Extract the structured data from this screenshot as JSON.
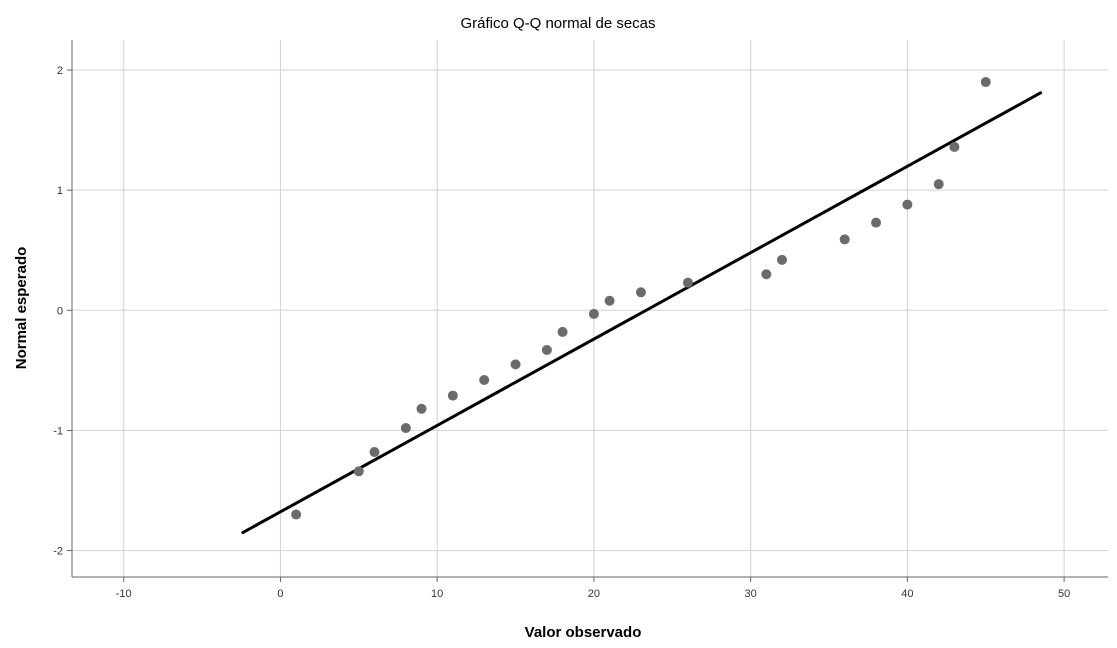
{
  "chart_data": {
    "type": "scatter",
    "title": "Gráfico Q-Q normal de secas",
    "xlabel": "Valor observado",
    "ylabel": "Normal esperado",
    "xlim": [
      -13.3,
      52.8
    ],
    "ylim": [
      -2.22,
      2.25
    ],
    "xticks": [
      -10,
      0,
      10,
      20,
      30,
      40,
      50
    ],
    "yticks": [
      -2,
      -1,
      0,
      1,
      2
    ],
    "x_tick_labels": [
      "-10",
      "0",
      "10",
      "20",
      "30",
      "40",
      "50"
    ],
    "y_tick_labels": [
      "-2",
      "-1",
      "0",
      "1",
      "2"
    ],
    "grid": true,
    "points": [
      {
        "x": 1,
        "y": -1.7
      },
      {
        "x": 5,
        "y": -1.34
      },
      {
        "x": 6,
        "y": -1.18
      },
      {
        "x": 8,
        "y": -0.98
      },
      {
        "x": 9,
        "y": -0.82
      },
      {
        "x": 11,
        "y": -0.71
      },
      {
        "x": 13,
        "y": -0.58
      },
      {
        "x": 15,
        "y": -0.45
      },
      {
        "x": 17,
        "y": -0.33
      },
      {
        "x": 18,
        "y": -0.18
      },
      {
        "x": 20,
        "y": -0.03
      },
      {
        "x": 21,
        "y": 0.08
      },
      {
        "x": 23,
        "y": 0.15
      },
      {
        "x": 26,
        "y": 0.23
      },
      {
        "x": 31,
        "y": 0.3
      },
      {
        "x": 32,
        "y": 0.42
      },
      {
        "x": 36,
        "y": 0.59
      },
      {
        "x": 38,
        "y": 0.73
      },
      {
        "x": 40,
        "y": 0.88
      },
      {
        "x": 42,
        "y": 1.05
      },
      {
        "x": 43,
        "y": 1.36
      },
      {
        "x": 45,
        "y": 1.9
      }
    ],
    "reference_line": {
      "x": [
        -2.4,
        48.5
      ],
      "y": [
        -1.85,
        1.81
      ]
    },
    "colors": {
      "points": "#6b6b6b",
      "line": "#000000",
      "grid": "#d2d2d2",
      "frame": "#666666"
    }
  }
}
